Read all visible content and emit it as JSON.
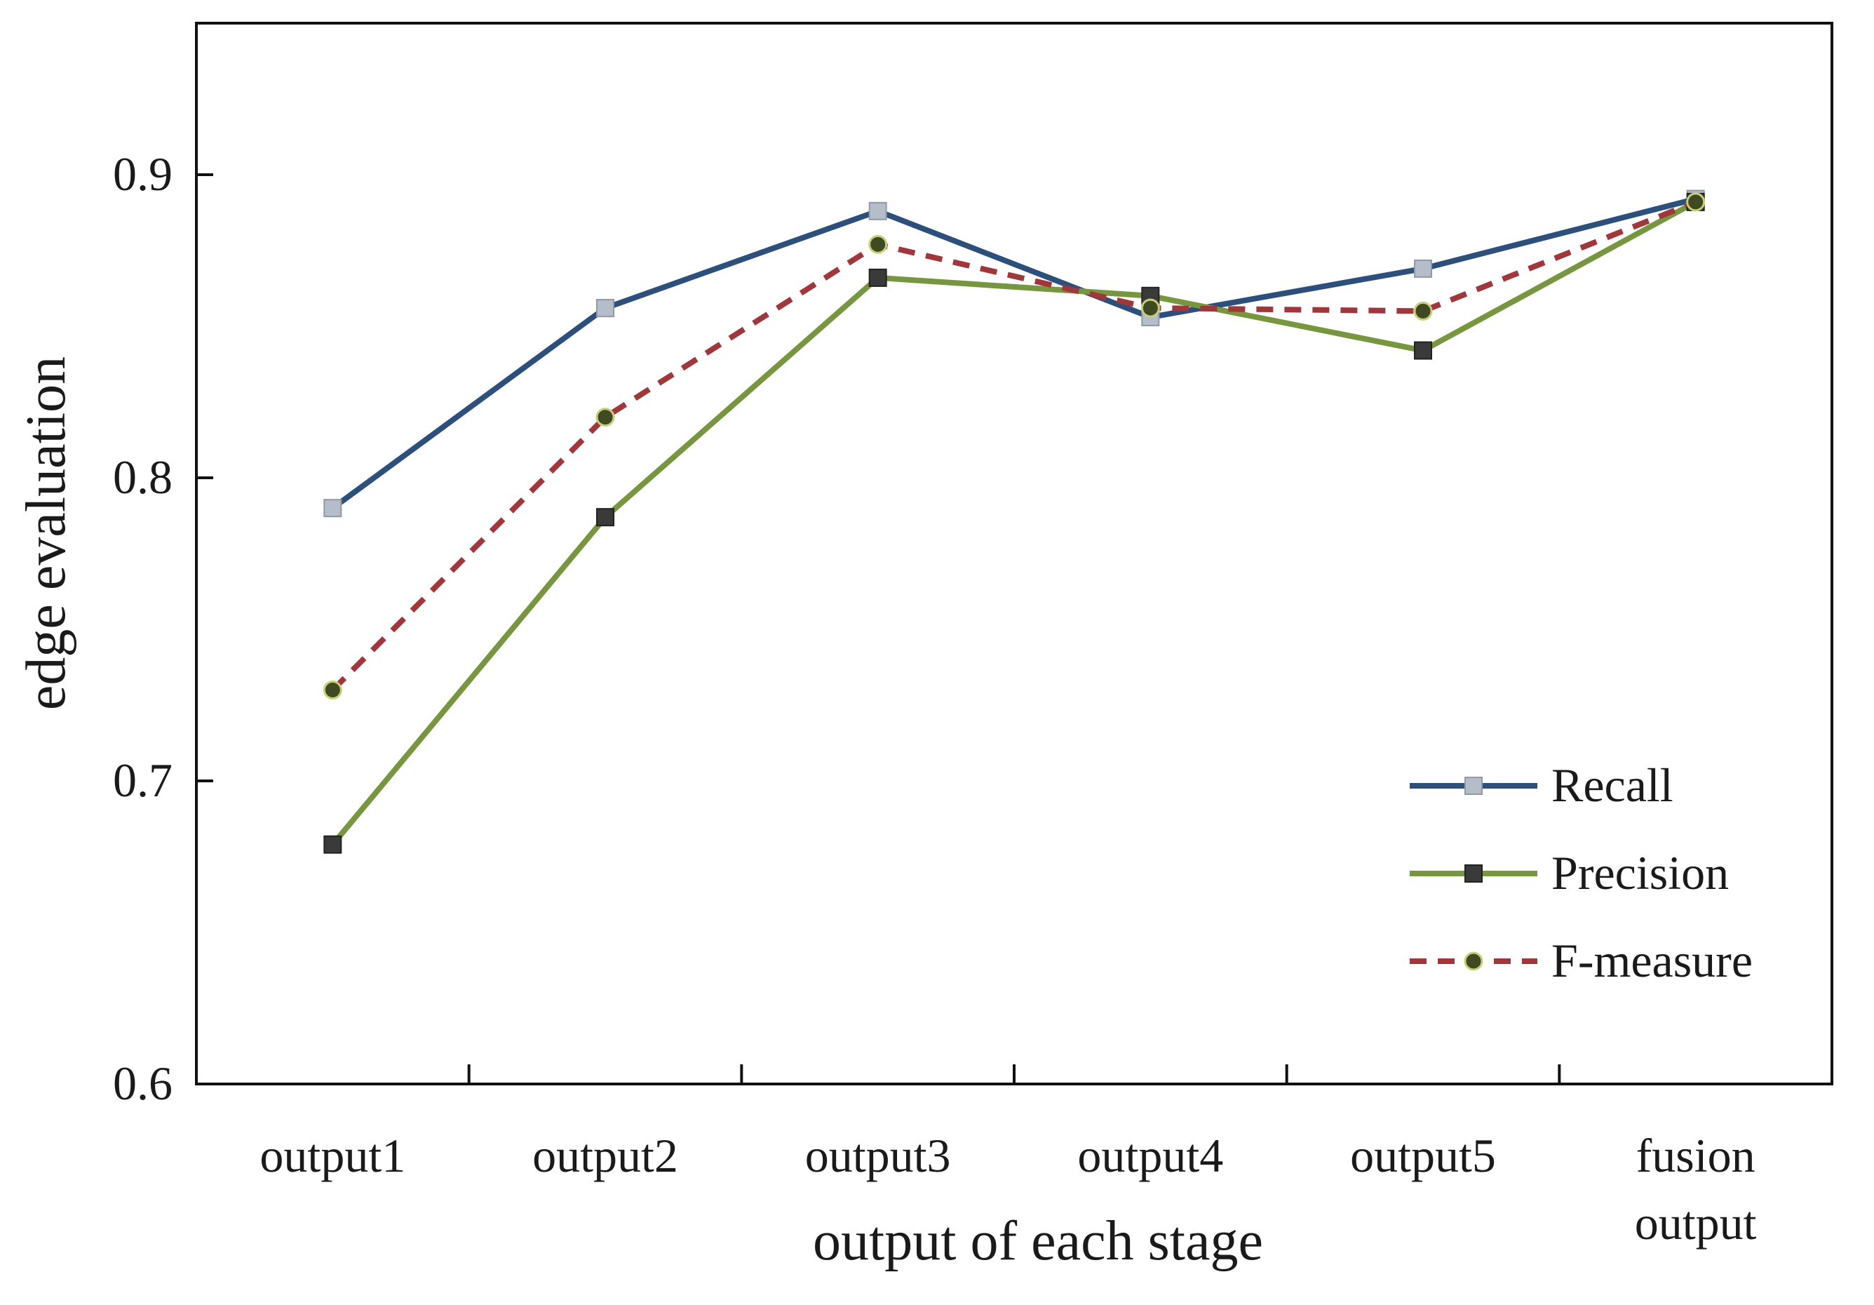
{
  "chart_data": {
    "type": "line",
    "title": "",
    "xlabel": "output of each stage",
    "ylabel": "edge evaluation",
    "ylim": [
      0.6,
      0.95
    ],
    "yticks": [
      0.6,
      0.7,
      0.8,
      0.9
    ],
    "ytick_labels": [
      "0.6",
      "0.7",
      "0.8",
      "0.9"
    ],
    "categories": [
      [
        "output1"
      ],
      [
        "output2"
      ],
      [
        "output3"
      ],
      [
        "output4"
      ],
      [
        "output5"
      ],
      [
        "fusion",
        "output"
      ]
    ],
    "series": [
      {
        "name": "Recall",
        "values": [
          0.79,
          0.856,
          0.888,
          0.853,
          0.869,
          0.892
        ],
        "color": "#2c4f7c",
        "marker": "square",
        "marker_fill": "#b4bdc9",
        "dashed": false
      },
      {
        "name": "Precision",
        "values": [
          0.679,
          0.787,
          0.866,
          0.86,
          0.842,
          0.891
        ],
        "color": "#76973f",
        "marker": "square",
        "marker_fill": "#3a3a3a",
        "dashed": false
      },
      {
        "name": "F-measure",
        "values": [
          0.73,
          0.82,
          0.877,
          0.856,
          0.855,
          0.891
        ],
        "color": "#a0373b",
        "marker": "circle",
        "marker_fill": "#3f4a22",
        "dashed": true
      }
    ],
    "legend_position": "bottom-right",
    "grid": false
  }
}
